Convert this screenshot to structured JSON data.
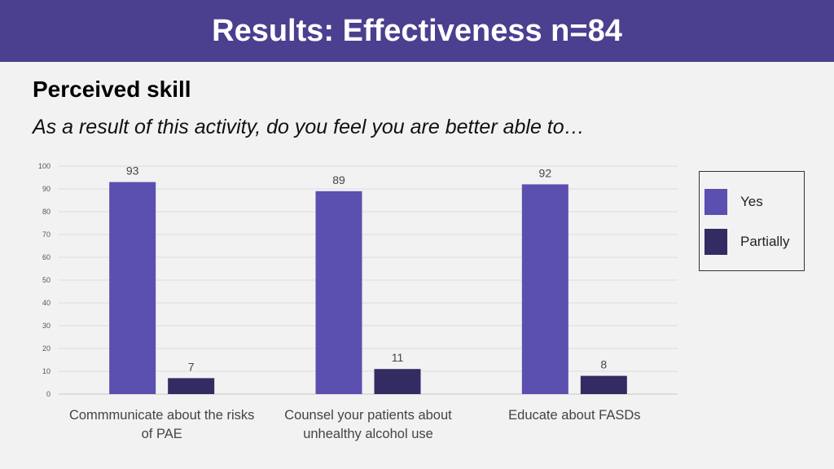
{
  "header": {
    "title": "Results: Effectiveness n=84"
  },
  "section": {
    "title": "Perceived skill",
    "question": "As a result of this activity, do you feel you are better able to…"
  },
  "colors": {
    "header_bg": "#4b3f8f",
    "yes": "#5b4fb0",
    "partially": "#332c63"
  },
  "chart_data": {
    "type": "bar",
    "categories": [
      [
        "Commmunicate about the risks",
        "of PAE"
      ],
      [
        "Counsel your patients about",
        "unhealthy alcohol use"
      ],
      [
        "Educate about FASDs"
      ]
    ],
    "series": [
      {
        "name": "Yes",
        "values": [
          93,
          89,
          92
        ],
        "color": "#5b4fb0"
      },
      {
        "name": "Partially",
        "values": [
          7,
          11,
          8
        ],
        "color": "#332c63"
      }
    ],
    "ylim": [
      0,
      100
    ],
    "yticks": [
      0,
      10,
      20,
      30,
      40,
      50,
      60,
      70,
      80,
      90,
      100
    ],
    "grid": true,
    "legend_position": "right"
  }
}
